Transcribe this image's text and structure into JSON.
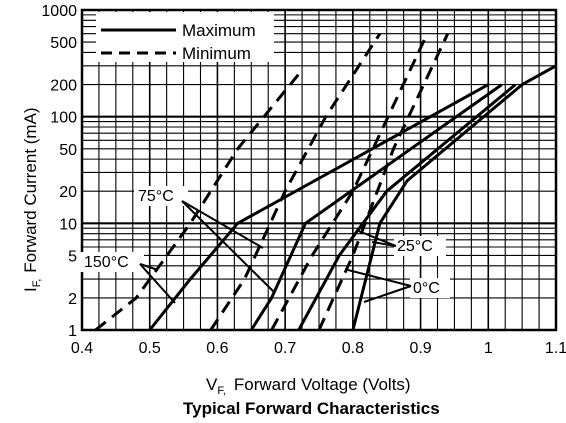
{
  "chart_data": {
    "type": "line",
    "title": "Typical Forward Characteristics",
    "xlabel_main": "V",
    "xlabel_sub": "F,",
    "xlabel_rest": "Forward Voltage (Volts)",
    "ylabel_main": "I",
    "ylabel_sub": "F,",
    "ylabel_rest": "Forward Current (mA)",
    "xlim": [
      0.4,
      1.1
    ],
    "ylim": [
      1,
      1000
    ],
    "yscale": "log",
    "grid": true,
    "x_ticks": [
      0.4,
      0.5,
      0.6,
      0.7,
      0.8,
      0.9,
      1,
      1.1
    ],
    "x_tick_labels": [
      "0.4",
      "0.5",
      "0.6",
      "0.7",
      "0.8",
      "0.9",
      "1",
      "1.1"
    ],
    "y_ticks": [
      1,
      2,
      5,
      10,
      20,
      50,
      100,
      200,
      500,
      1000
    ],
    "y_tick_labels": [
      "1",
      "2",
      "5",
      "10",
      "20",
      "50",
      "100",
      "200",
      "500",
      "1000"
    ],
    "legend": {
      "position": "top-left",
      "entries": [
        {
          "label": "Maximum",
          "style": "solid"
        },
        {
          "label": "Minimum",
          "style": "dashed"
        }
      ]
    },
    "series": [
      {
        "temperature": "150°C",
        "style": "dashed",
        "x": [
          0.42,
          0.48,
          0.56,
          0.63,
          0.72
        ],
        "y": [
          1,
          2,
          10,
          50,
          250
        ]
      },
      {
        "temperature": "150°C",
        "style": "solid",
        "x": [
          0.5,
          0.56,
          0.63,
          1.0
        ],
        "y": [
          1,
          3,
          10,
          200
        ]
      },
      {
        "temperature": "75°C",
        "style": "dashed",
        "x": [
          0.59,
          0.64,
          0.7,
          0.76,
          0.84
        ],
        "y": [
          1,
          3,
          20,
          100,
          600
        ]
      },
      {
        "temperature": "75°C",
        "style": "solid",
        "x": [
          0.65,
          0.68,
          0.73,
          1.02
        ],
        "y": [
          1,
          2,
          10,
          200
        ]
      },
      {
        "temperature": "25°C",
        "style": "dashed",
        "x": [
          0.68,
          0.74,
          0.8,
          0.91
        ],
        "y": [
          1,
          5,
          20,
          600
        ]
      },
      {
        "temperature": "25°C",
        "style": "solid",
        "x": [
          0.72,
          0.78,
          0.85,
          1.04
        ],
        "y": [
          1,
          5,
          20,
          200
        ]
      },
      {
        "temperature": "0°C",
        "style": "dashed",
        "x": [
          0.75,
          0.8,
          0.86,
          0.94
        ],
        "y": [
          1,
          5,
          50,
          600
        ]
      },
      {
        "temperature": "0°C",
        "style": "solid",
        "x": [
          0.8,
          0.84,
          0.88,
          1.05,
          1.1
        ],
        "y": [
          1,
          10,
          25,
          200,
          300
        ]
      }
    ],
    "annotations": [
      {
        "label": "75°C"
      },
      {
        "label": "150°C"
      },
      {
        "label": "25°C"
      },
      {
        "label": "0°C"
      }
    ]
  }
}
